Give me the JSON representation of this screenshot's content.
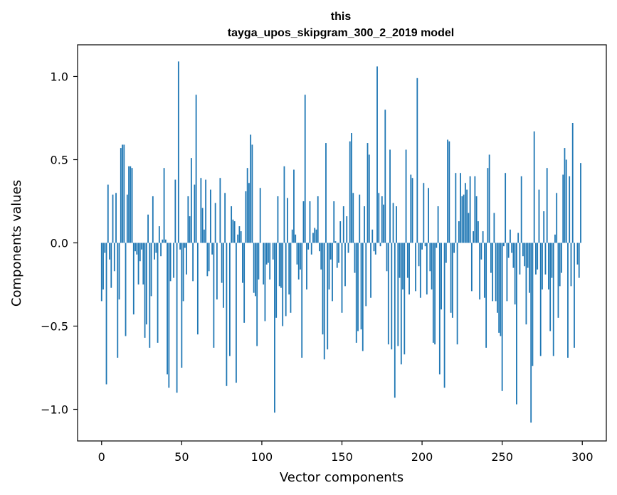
{
  "chart_data": {
    "type": "bar",
    "title_lines": [
      "this",
      "tayga_upos_skipgram_300_2_2019 model"
    ],
    "xlabel": "Vector components",
    "ylabel": "Components values",
    "xlim": [
      -15,
      315
    ],
    "ylim": [
      -1.19,
      1.19
    ],
    "xticks": [
      0,
      50,
      100,
      150,
      200,
      250,
      300
    ],
    "yticks": [
      -1.0,
      -0.5,
      0.0,
      0.5,
      1.0
    ],
    "ytick_labels": [
      "−1.0",
      "−0.5",
      "0.0",
      "0.5",
      "1.0"
    ],
    "bar_color": "#1f77b4",
    "grid": false,
    "values": [
      -0.35,
      -0.28,
      -0.06,
      -0.85,
      0.35,
      -0.1,
      -0.27,
      0.29,
      -0.17,
      0.3,
      -0.69,
      -0.34,
      0.57,
      0.59,
      0.59,
      -0.56,
      0.29,
      0.46,
      0.46,
      0.45,
      -0.43,
      -0.05,
      -0.07,
      -0.25,
      -0.11,
      -0.04,
      -0.25,
      -0.57,
      -0.49,
      0.17,
      -0.63,
      -0.32,
      0.28,
      -0.1,
      -0.06,
      -0.6,
      0.1,
      -0.08,
      0.02,
      0.45,
      0.02,
      -0.79,
      -0.87,
      -0.23,
      0.0,
      -0.21,
      0.38,
      -0.9,
      1.09,
      -0.04,
      -0.75,
      -0.35,
      -0.03,
      -0.19,
      0.28,
      0.16,
      0.51,
      -0.23,
      0.35,
      0.89,
      -0.55,
      0.0,
      0.39,
      0.21,
      0.08,
      0.38,
      -0.2,
      -0.17,
      0.32,
      -0.07,
      -0.63,
      0.24,
      -0.34,
      0.0,
      0.39,
      -0.24,
      -0.39,
      0.3,
      -0.86,
      0.0,
      -0.68,
      0.22,
      0.14,
      0.13,
      -0.84,
      0.05,
      0.1,
      0.07,
      -0.24,
      -0.48,
      0.31,
      0.45,
      0.36,
      0.65,
      0.59,
      -0.3,
      -0.32,
      -0.62,
      -0.22,
      0.33,
      0.0,
      -0.25,
      -0.47,
      -0.13,
      -0.12,
      -0.22,
      0.0,
      -0.1,
      -1.02,
      -0.45,
      0.28,
      -0.26,
      -0.27,
      -0.5,
      0.46,
      -0.44,
      0.27,
      -0.31,
      -0.42,
      0.08,
      0.44,
      0.05,
      -0.13,
      -0.22,
      -0.16,
      -0.69,
      0.25,
      0.89,
      -0.28,
      -0.04,
      0.25,
      -0.07,
      0.06,
      0.09,
      0.08,
      0.28,
      -0.05,
      -0.16,
      -0.55,
      -0.7,
      0.6,
      -0.64,
      -0.28,
      -0.1,
      -0.35,
      0.25,
      0.01,
      -0.15,
      -0.12,
      0.13,
      -0.42,
      0.22,
      -0.26,
      0.16,
      -0.06,
      0.61,
      0.66,
      0.3,
      -0.18,
      -0.6,
      -0.53,
      0.29,
      -0.52,
      -0.65,
      0.22,
      -0.38,
      0.6,
      0.53,
      -0.33,
      0.08,
      -0.05,
      -0.07,
      1.06,
      0.3,
      -0.02,
      0.28,
      0.23,
      0.8,
      -0.17,
      -0.61,
      0.56,
      -0.64,
      0.24,
      -0.93,
      0.22,
      -0.62,
      -0.21,
      -0.73,
      -0.28,
      -0.67,
      0.56,
      -0.21,
      -0.31,
      0.41,
      0.39,
      0.0,
      -0.29,
      0.99,
      -0.14,
      -0.33,
      -0.04,
      0.36,
      -0.02,
      -0.31,
      0.33,
      -0.17,
      -0.28,
      -0.6,
      -0.61,
      -0.03,
      0.22,
      -0.79,
      -0.4,
      0.0,
      -0.87,
      -0.12,
      0.62,
      0.61,
      -0.42,
      -0.45,
      -0.06,
      0.42,
      -0.61,
      0.13,
      0.42,
      0.28,
      0.29,
      0.36,
      0.32,
      0.18,
      0.4,
      -0.29,
      0.07,
      0.4,
      0.28,
      0.13,
      -0.34,
      -0.1,
      0.07,
      -0.33,
      -0.63,
      0.45,
      0.53,
      -0.18,
      -0.35,
      0.18,
      -0.35,
      -0.42,
      -0.54,
      -0.56,
      -0.89,
      -0.02,
      0.42,
      -0.35,
      -0.09,
      0.08,
      -0.06,
      -0.15,
      -0.37,
      -0.97,
      0.06,
      -0.19,
      0.4,
      -0.08,
      -0.14,
      -0.49,
      -0.15,
      -0.3,
      -1.08,
      -0.74,
      0.67,
      -0.19,
      -0.16,
      0.32,
      -0.68,
      -0.28,
      0.19,
      -0.19,
      0.45,
      -0.28,
      -0.53,
      -0.21,
      -0.68,
      0.05,
      0.3,
      -0.45,
      -0.26,
      -0.18,
      0.41,
      0.57,
      0.5,
      -0.69,
      0.4,
      -0.26,
      0.72,
      -0.63,
      0.0,
      -0.13,
      -0.21,
      0.48
    ]
  }
}
